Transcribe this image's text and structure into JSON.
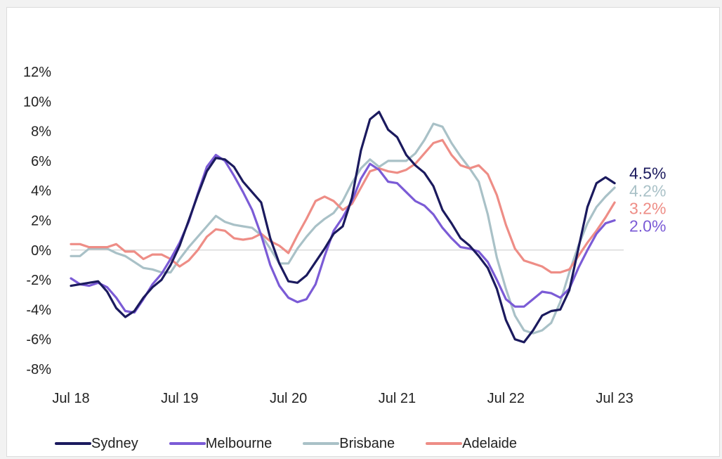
{
  "chart_data": {
    "type": "line",
    "title": "",
    "xlabel": "",
    "ylabel": "",
    "ylim": [
      -8,
      12
    ],
    "y_ticks": [
      12,
      10,
      8,
      6,
      4,
      2,
      0,
      -2,
      -4,
      -6,
      -8
    ],
    "y_tick_labels": [
      "12%",
      "10%",
      "8%",
      "6%",
      "4%",
      "2%",
      "0%",
      "-2%",
      "-4%",
      "-6%",
      "-8%"
    ],
    "x_range": [
      "2018-07",
      "2023-08"
    ],
    "x_ticks": [
      "2018-07",
      "2019-07",
      "2020-07",
      "2021-07",
      "2022-07",
      "2023-07"
    ],
    "x_tick_labels": [
      "Jul 18",
      "Jul 19",
      "Jul 20",
      "Jul 21",
      "Jul 22",
      "Jul 23"
    ],
    "zero_line": true,
    "grid": false,
    "legend_position": "bottom",
    "series": [
      {
        "name": "Sydney",
        "color": "#1b1a5e",
        "end_label": "4.5%",
        "points": [
          [
            "2018-07",
            -2.4
          ],
          [
            "2018-08",
            -2.3
          ],
          [
            "2018-09",
            -2.2
          ],
          [
            "2018-10",
            -2.1
          ],
          [
            "2018-11",
            -2.8
          ],
          [
            "2018-12",
            -3.9
          ],
          [
            "2019-01",
            -4.5
          ],
          [
            "2019-02",
            -4.1
          ],
          [
            "2019-03",
            -3.2
          ],
          [
            "2019-04",
            -2.5
          ],
          [
            "2019-05",
            -2.0
          ],
          [
            "2019-06",
            -1.0
          ],
          [
            "2019-07",
            0.3
          ],
          [
            "2019-08",
            2.0
          ],
          [
            "2019-09",
            3.7
          ],
          [
            "2019-10",
            5.3
          ],
          [
            "2019-11",
            6.2
          ],
          [
            "2019-12",
            6.1
          ],
          [
            "2020-01",
            5.6
          ],
          [
            "2020-02",
            4.6
          ],
          [
            "2020-03",
            3.9
          ],
          [
            "2020-04",
            3.2
          ],
          [
            "2020-05",
            0.8
          ],
          [
            "2020-06",
            -0.9
          ],
          [
            "2020-07",
            -2.1
          ],
          [
            "2020-08",
            -2.2
          ],
          [
            "2020-09",
            -1.7
          ],
          [
            "2020-10",
            -0.8
          ],
          [
            "2020-11",
            0.1
          ],
          [
            "2020-12",
            1.1
          ],
          [
            "2021-01",
            1.6
          ],
          [
            "2021-02",
            3.5
          ],
          [
            "2021-03",
            6.7
          ],
          [
            "2021-04",
            8.8
          ],
          [
            "2021-05",
            9.3
          ],
          [
            "2021-06",
            8.1
          ],
          [
            "2021-07",
            7.6
          ],
          [
            "2021-08",
            6.4
          ],
          [
            "2021-09",
            5.7
          ],
          [
            "2021-10",
            5.2
          ],
          [
            "2021-11",
            4.3
          ],
          [
            "2021-12",
            2.7
          ],
          [
            "2022-01",
            1.8
          ],
          [
            "2022-02",
            0.8
          ],
          [
            "2022-03",
            0.3
          ],
          [
            "2022-04",
            -0.4
          ],
          [
            "2022-05",
            -1.2
          ],
          [
            "2022-06",
            -2.6
          ],
          [
            "2022-07",
            -4.7
          ],
          [
            "2022-08",
            -6.0
          ],
          [
            "2022-09",
            -6.2
          ],
          [
            "2022-10",
            -5.4
          ],
          [
            "2022-11",
            -4.4
          ],
          [
            "2022-12",
            -4.1
          ],
          [
            "2023-01",
            -4.0
          ],
          [
            "2023-02",
            -2.7
          ],
          [
            "2023-03",
            0.1
          ],
          [
            "2023-04",
            2.9
          ],
          [
            "2023-05",
            4.5
          ],
          [
            "2023-06",
            4.9
          ],
          [
            "2023-07",
            4.5
          ]
        ]
      },
      {
        "name": "Melbourne",
        "color": "#7b5bd6",
        "end_label": "2.0%",
        "points": [
          [
            "2018-07",
            -1.9
          ],
          [
            "2018-08",
            -2.3
          ],
          [
            "2018-09",
            -2.4
          ],
          [
            "2018-10",
            -2.2
          ],
          [
            "2018-11",
            -2.5
          ],
          [
            "2018-12",
            -3.2
          ],
          [
            "2019-01",
            -4.1
          ],
          [
            "2019-02",
            -4.2
          ],
          [
            "2019-03",
            -3.3
          ],
          [
            "2019-04",
            -2.3
          ],
          [
            "2019-05",
            -1.6
          ],
          [
            "2019-06",
            -0.6
          ],
          [
            "2019-07",
            0.5
          ],
          [
            "2019-08",
            1.9
          ],
          [
            "2019-09",
            3.8
          ],
          [
            "2019-10",
            5.6
          ],
          [
            "2019-11",
            6.4
          ],
          [
            "2019-12",
            6.0
          ],
          [
            "2020-01",
            5.0
          ],
          [
            "2020-02",
            3.9
          ],
          [
            "2020-03",
            2.7
          ],
          [
            "2020-04",
            1.0
          ],
          [
            "2020-05",
            -1.0
          ],
          [
            "2020-06",
            -2.4
          ],
          [
            "2020-07",
            -3.2
          ],
          [
            "2020-08",
            -3.5
          ],
          [
            "2020-09",
            -3.3
          ],
          [
            "2020-10",
            -2.3
          ],
          [
            "2020-11",
            -0.4
          ],
          [
            "2020-12",
            1.3
          ],
          [
            "2021-01",
            2.2
          ],
          [
            "2021-02",
            3.3
          ],
          [
            "2021-03",
            4.8
          ],
          [
            "2021-04",
            5.8
          ],
          [
            "2021-05",
            5.4
          ],
          [
            "2021-06",
            4.6
          ],
          [
            "2021-07",
            4.5
          ],
          [
            "2021-08",
            3.9
          ],
          [
            "2021-09",
            3.3
          ],
          [
            "2021-10",
            3.0
          ],
          [
            "2021-11",
            2.4
          ],
          [
            "2021-12",
            1.5
          ],
          [
            "2022-01",
            0.8
          ],
          [
            "2022-02",
            0.2
          ],
          [
            "2022-03",
            0.1
          ],
          [
            "2022-04",
            -0.1
          ],
          [
            "2022-05",
            -0.8
          ],
          [
            "2022-06",
            -2.0
          ],
          [
            "2022-07",
            -3.3
          ],
          [
            "2022-08",
            -3.8
          ],
          [
            "2022-09",
            -3.8
          ],
          [
            "2022-10",
            -3.3
          ],
          [
            "2022-11",
            -2.8
          ],
          [
            "2022-12",
            -2.9
          ],
          [
            "2023-01",
            -3.2
          ],
          [
            "2023-02",
            -2.6
          ],
          [
            "2023-03",
            -1.2
          ],
          [
            "2023-04",
            0.0
          ],
          [
            "2023-05",
            1.1
          ],
          [
            "2023-06",
            1.8
          ],
          [
            "2023-07",
            2.0
          ]
        ]
      },
      {
        "name": "Brisbane",
        "color": "#a9c1c7",
        "end_label": "4.2%",
        "points": [
          [
            "2018-07",
            -0.4
          ],
          [
            "2018-08",
            -0.4
          ],
          [
            "2018-09",
            0.1
          ],
          [
            "2018-10",
            0.1
          ],
          [
            "2018-11",
            0.1
          ],
          [
            "2018-12",
            -0.2
          ],
          [
            "2019-01",
            -0.4
          ],
          [
            "2019-02",
            -0.8
          ],
          [
            "2019-03",
            -1.2
          ],
          [
            "2019-04",
            -1.3
          ],
          [
            "2019-05",
            -1.5
          ],
          [
            "2019-06",
            -1.5
          ],
          [
            "2019-07",
            -0.6
          ],
          [
            "2019-08",
            0.2
          ],
          [
            "2019-09",
            0.9
          ],
          [
            "2019-10",
            1.6
          ],
          [
            "2019-11",
            2.3
          ],
          [
            "2019-12",
            1.9
          ],
          [
            "2020-01",
            1.7
          ],
          [
            "2020-02",
            1.6
          ],
          [
            "2020-03",
            1.5
          ],
          [
            "2020-04",
            1.0
          ],
          [
            "2020-05",
            0.1
          ],
          [
            "2020-06",
            -0.9
          ],
          [
            "2020-07",
            -0.9
          ],
          [
            "2020-08",
            0.1
          ],
          [
            "2020-09",
            0.9
          ],
          [
            "2020-10",
            1.6
          ],
          [
            "2020-11",
            2.1
          ],
          [
            "2020-12",
            2.5
          ],
          [
            "2021-01",
            3.3
          ],
          [
            "2021-02",
            4.5
          ],
          [
            "2021-03",
            5.5
          ],
          [
            "2021-04",
            6.1
          ],
          [
            "2021-05",
            5.6
          ],
          [
            "2021-06",
            6.0
          ],
          [
            "2021-07",
            6.0
          ],
          [
            "2021-08",
            6.0
          ],
          [
            "2021-09",
            6.5
          ],
          [
            "2021-10",
            7.4
          ],
          [
            "2021-11",
            8.5
          ],
          [
            "2021-12",
            8.3
          ],
          [
            "2022-01",
            7.2
          ],
          [
            "2022-02",
            6.3
          ],
          [
            "2022-03",
            5.5
          ],
          [
            "2022-04",
            4.6
          ],
          [
            "2022-05",
            2.4
          ],
          [
            "2022-06",
            -0.5
          ],
          [
            "2022-07",
            -2.6
          ],
          [
            "2022-08",
            -4.4
          ],
          [
            "2022-09",
            -5.4
          ],
          [
            "2022-10",
            -5.6
          ],
          [
            "2022-11",
            -5.4
          ],
          [
            "2022-12",
            -4.9
          ],
          [
            "2023-01",
            -3.5
          ],
          [
            "2023-02",
            -1.5
          ],
          [
            "2023-03",
            0.3
          ],
          [
            "2023-04",
            1.8
          ],
          [
            "2023-05",
            2.9
          ],
          [
            "2023-06",
            3.6
          ],
          [
            "2023-07",
            4.2
          ]
        ]
      },
      {
        "name": "Adelaide",
        "color": "#ee8d86",
        "end_label": "3.2%",
        "points": [
          [
            "2018-07",
            0.4
          ],
          [
            "2018-08",
            0.4
          ],
          [
            "2018-09",
            0.2
          ],
          [
            "2018-10",
            0.2
          ],
          [
            "2018-11",
            0.2
          ],
          [
            "2018-12",
            0.4
          ],
          [
            "2019-01",
            -0.1
          ],
          [
            "2019-02",
            -0.1
          ],
          [
            "2019-03",
            -0.6
          ],
          [
            "2019-04",
            -0.3
          ],
          [
            "2019-05",
            -0.3
          ],
          [
            "2019-06",
            -0.6
          ],
          [
            "2019-07",
            -1.1
          ],
          [
            "2019-08",
            -0.7
          ],
          [
            "2019-09",
            0.0
          ],
          [
            "2019-10",
            0.9
          ],
          [
            "2019-11",
            1.4
          ],
          [
            "2019-12",
            1.3
          ],
          [
            "2020-01",
            0.8
          ],
          [
            "2020-02",
            0.7
          ],
          [
            "2020-03",
            0.8
          ],
          [
            "2020-04",
            1.1
          ],
          [
            "2020-05",
            0.6
          ],
          [
            "2020-06",
            0.3
          ],
          [
            "2020-07",
            -0.2
          ],
          [
            "2020-08",
            1.0
          ],
          [
            "2020-09",
            2.1
          ],
          [
            "2020-10",
            3.3
          ],
          [
            "2020-11",
            3.6
          ],
          [
            "2020-12",
            3.3
          ],
          [
            "2021-01",
            2.7
          ],
          [
            "2021-02",
            3.1
          ],
          [
            "2021-03",
            4.2
          ],
          [
            "2021-04",
            5.3
          ],
          [
            "2021-05",
            5.5
          ],
          [
            "2021-06",
            5.3
          ],
          [
            "2021-07",
            5.2
          ],
          [
            "2021-08",
            5.4
          ],
          [
            "2021-09",
            5.8
          ],
          [
            "2021-10",
            6.5
          ],
          [
            "2021-11",
            7.2
          ],
          [
            "2021-12",
            7.4
          ],
          [
            "2022-01",
            6.4
          ],
          [
            "2022-02",
            5.7
          ],
          [
            "2022-03",
            5.5
          ],
          [
            "2022-04",
            5.7
          ],
          [
            "2022-05",
            5.1
          ],
          [
            "2022-06",
            3.7
          ],
          [
            "2022-07",
            1.7
          ],
          [
            "2022-08",
            0.1
          ],
          [
            "2022-09",
            -0.7
          ],
          [
            "2022-10",
            -0.9
          ],
          [
            "2022-11",
            -1.1
          ],
          [
            "2022-12",
            -1.5
          ],
          [
            "2023-01",
            -1.5
          ],
          [
            "2023-02",
            -1.3
          ],
          [
            "2023-03",
            -0.4
          ],
          [
            "2023-04",
            0.5
          ],
          [
            "2023-05",
            1.3
          ],
          [
            "2023-06",
            2.2
          ],
          [
            "2023-07",
            3.2
          ]
        ]
      }
    ]
  }
}
